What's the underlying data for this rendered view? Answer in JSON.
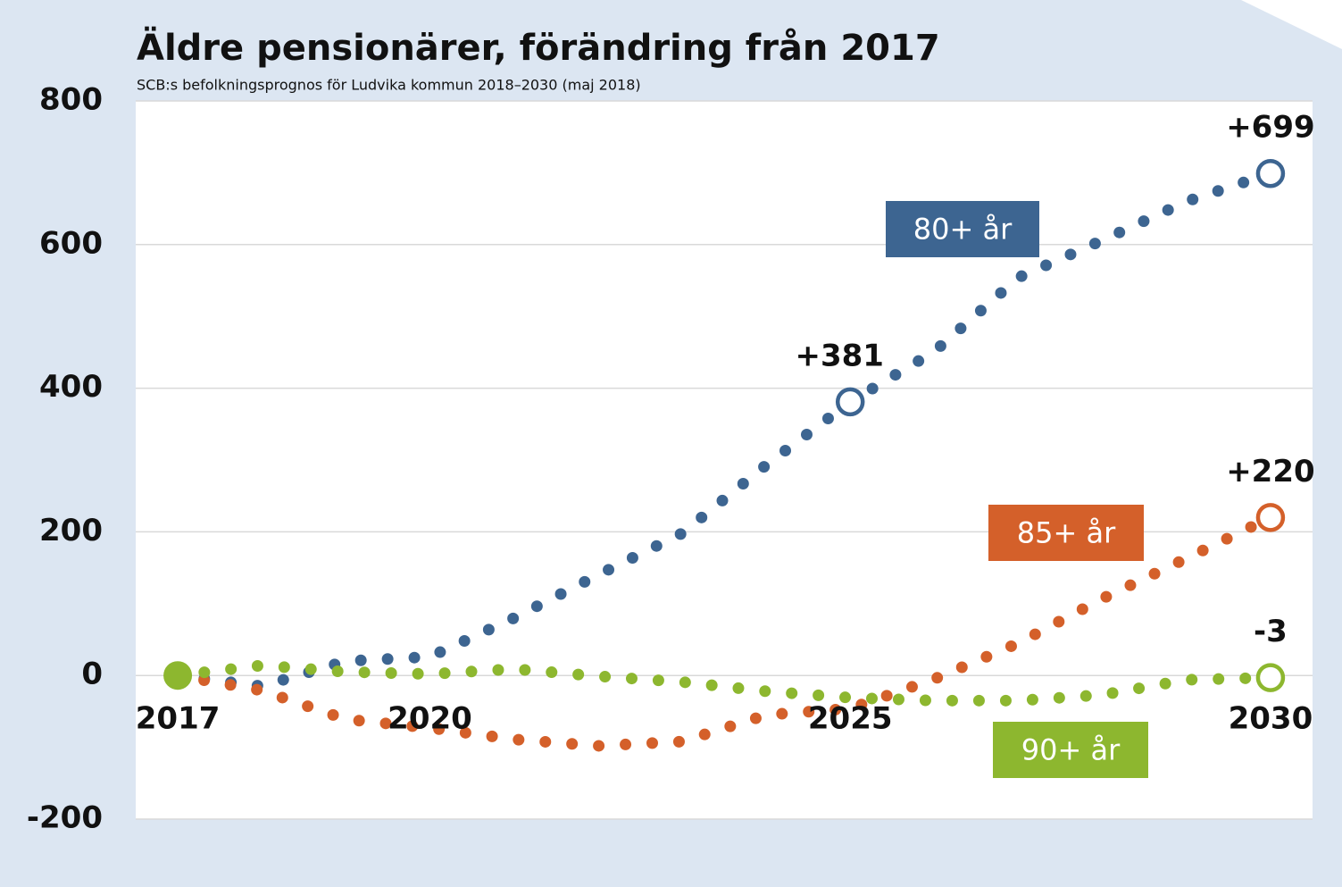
{
  "chart_data": {
    "type": "line",
    "title": "Äldre pensionärer, förändring från 2017",
    "subtitle": "SCB:s befolkningsprognos för Ludvika kommun 2018–2030 (maj 2018)",
    "x": [
      2017,
      2018,
      2019,
      2020,
      2021,
      2022,
      2023,
      2024,
      2025,
      2026,
      2027,
      2028,
      2029,
      2030
    ],
    "xlim": [
      2016.5,
      2030.5
    ],
    "xticks": [
      2017,
      2020,
      2025,
      2030
    ],
    "ylim": [
      -200,
      800
    ],
    "yticks": [
      -200,
      0,
      200,
      400,
      600,
      800
    ],
    "grid": true,
    "series": [
      {
        "name": "80+ år",
        "color": "#3d6591",
        "values": [
          0,
          -15,
          20,
          26,
          80,
          140,
          198,
          293,
          381,
          451,
          554,
          606,
          660,
          699
        ],
        "value_labels": [
          null,
          null,
          null,
          null,
          null,
          null,
          null,
          null,
          "+381",
          null,
          null,
          null,
          null,
          "+699"
        ]
      },
      {
        "name": "85+ år",
        "color": "#d4602a",
        "values": [
          0,
          -21,
          -61,
          -73,
          -89,
          -98,
          -92,
          -55,
          -46,
          -5,
          45,
          107,
          163,
          220
        ],
        "value_labels": [
          null,
          null,
          null,
          null,
          null,
          null,
          null,
          null,
          null,
          null,
          null,
          null,
          null,
          "+220"
        ]
      },
      {
        "name": "90+ år",
        "color": "#8db72f",
        "values": [
          0,
          14,
          5,
          2,
          9,
          -1,
          -9,
          -22,
          -31,
          -35,
          -35,
          -27,
          -6,
          -3
        ],
        "value_labels": [
          null,
          null,
          null,
          null,
          null,
          null,
          null,
          null,
          null,
          null,
          null,
          null,
          null,
          "-3"
        ]
      }
    ]
  }
}
